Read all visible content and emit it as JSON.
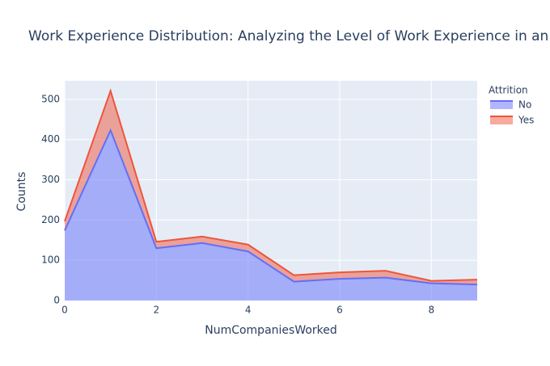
{
  "chart_data": {
    "type": "area",
    "title": "Work Experience Distribution: Analyzing the Level of Work Experience in an",
    "x_label": "NumCompaniesWorked",
    "y_label": "Counts",
    "legend_title": "Attrition",
    "x": [
      0,
      1,
      2,
      3,
      4,
      5,
      6,
      7,
      8,
      9
    ],
    "series": [
      {
        "name": "No",
        "color": "#636efa",
        "values": [
          174,
          423,
          130,
          143,
          122,
          47,
          54,
          57,
          43,
          40
        ]
      },
      {
        "name": "Yes",
        "color": "#EF553B",
        "values": [
          23,
          98,
          16,
          16,
          17,
          16,
          16,
          17,
          6,
          12
        ]
      }
    ],
    "stacked": true,
    "xlim": [
      0,
      9
    ],
    "xticks": [
      0,
      2,
      4,
      6,
      8
    ],
    "ylim": [
      0,
      546
    ],
    "yticks": [
      0,
      100,
      200,
      300,
      400,
      500
    ],
    "grid": true,
    "legend": "right"
  }
}
